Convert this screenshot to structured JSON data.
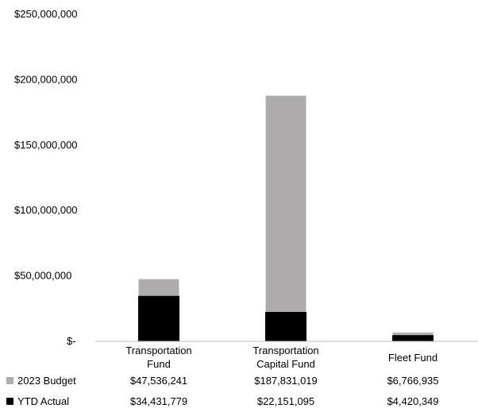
{
  "chart_data": {
    "type": "bar",
    "stacked": false,
    "overlap": true,
    "categories": [
      [
        "Transportation",
        "Fund"
      ],
      [
        "Transportation",
        "Capital Fund"
      ],
      [
        "Fleet Fund"
      ]
    ],
    "series": [
      {
        "name": "2023 Budget",
        "color": "#adabab",
        "values": [
          47536241,
          187831019,
          6766935
        ],
        "labels": [
          "$47,536,241",
          "$187,831,019",
          "$6,766,935"
        ]
      },
      {
        "name": "YTD Actual",
        "color": "#000000",
        "values": [
          34431779,
          22151095,
          4420349
        ],
        "labels": [
          "$34,431,779",
          "$22,151,095",
          "$4,420,349"
        ]
      }
    ],
    "ylim": [
      0,
      250000000
    ],
    "yticks": [
      0,
      50000000,
      100000000,
      150000000,
      200000000,
      250000000
    ],
    "ytick_labels": [
      "$-",
      "$50,000,000",
      "$100,000,000",
      "$150,000,000",
      "$200,000,000",
      "$250,000,000"
    ],
    "grid": false,
    "legend": "data-table"
  }
}
